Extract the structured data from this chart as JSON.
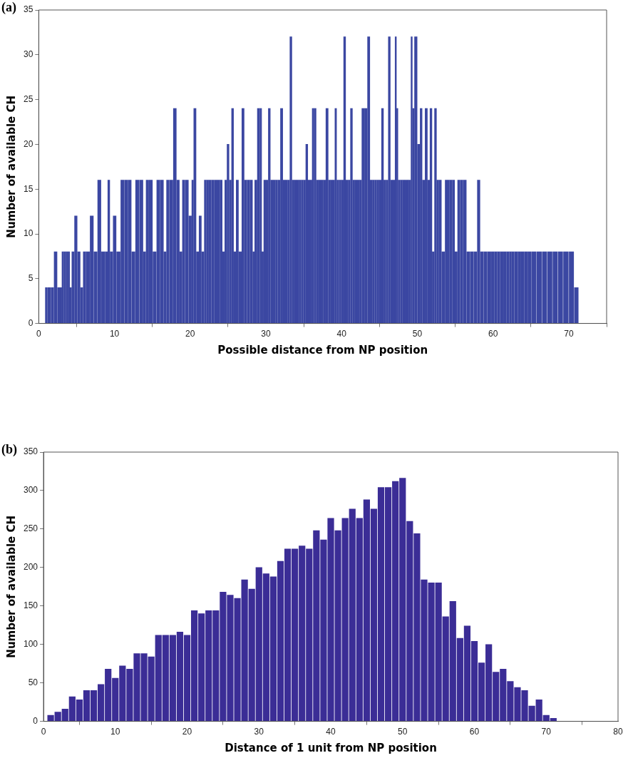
{
  "chart_data": [
    {
      "type": "bar",
      "title": "(a)",
      "xlabel": "Possible distance from NP position",
      "ylabel": "Number of available CH",
      "color": "#3b47a2",
      "x": [
        1.0,
        1.3,
        1.9,
        2.1,
        2.8,
        3.0,
        3.1,
        3.5,
        3.7,
        4.0,
        4.2,
        4.5,
        4.9,
        5.3,
        5.7,
        6.0,
        6.5,
        7.0,
        7.5,
        8.0,
        8.5,
        9.0,
        9.2,
        9.6,
        10.0,
        10.5,
        11.1,
        11.5,
        12.0,
        12.5,
        13.0,
        13.6,
        14.0,
        14.3,
        14.8,
        15.3,
        15.8,
        16.3,
        16.7,
        17.0,
        17.5,
        18.0,
        18.4,
        18.8,
        19.1,
        19.5,
        20.1,
        20.3,
        20.6,
        21.0,
        21.3,
        21.7,
        22.0,
        22.3,
        22.6,
        23.0,
        23.4,
        23.8,
        24.1,
        24.4,
        24.7,
        25.0,
        25.3,
        25.6,
        25.9,
        26.2,
        26.6,
        27.0,
        27.3,
        27.7,
        28.1,
        28.4,
        28.6,
        29.1,
        29.3,
        29.6,
        29.8,
        30.2,
        30.4,
        30.8,
        31.1,
        31.4,
        31.7,
        32.1,
        32.4,
        32.7,
        33.0,
        33.3,
        33.6,
        33.9,
        34.2,
        34.5,
        34.8,
        35.1,
        35.4,
        35.7,
        36.0,
        36.2,
        36.5,
        36.8,
        37.1,
        37.4,
        37.7,
        38.1,
        38.4,
        38.7,
        39.0,
        39.2,
        39.5,
        39.8,
        40.1,
        40.4,
        40.7,
        41.0,
        41.3,
        41.6,
        41.9,
        42.2,
        42.5,
        42.8,
        43.2,
        43.6,
        43.9,
        44.2,
        44.5,
        44.8,
        45.1,
        45.4,
        45.7,
        46.0,
        46.3,
        46.6,
        46.9,
        47.2,
        47.3,
        47.6,
        47.9,
        48.2,
        48.5,
        48.8,
        49.0,
        49.3,
        49.4,
        49.8,
        50.2,
        50.5,
        50.8,
        51.2,
        51.5,
        51.8,
        52.1,
        52.4,
        52.7,
        53.0,
        53.4,
        53.9,
        54.1,
        54.4,
        54.8,
        55.1,
        55.5,
        55.8,
        56.3,
        56.7,
        57.2,
        57.7,
        58.1,
        58.5,
        59.0,
        59.5,
        60.0,
        60.4,
        60.7,
        61.1,
        61.6,
        62.0,
        62.3,
        62.6,
        63.0,
        63.5,
        63.9,
        64.3,
        64.8,
        65.4,
        66.1,
        66.8,
        67.5,
        68.2,
        68.9,
        69.6,
        70.4,
        71.0
      ],
      "values": [
        4,
        4,
        4,
        8,
        4,
        4,
        8,
        8,
        8,
        8,
        4,
        8,
        12,
        8,
        4,
        8,
        8,
        12,
        8,
        16,
        8,
        8,
        16,
        8,
        12,
        8,
        16,
        16,
        16,
        8,
        16,
        16,
        8,
        16,
        16,
        8,
        16,
        16,
        8,
        16,
        16,
        24,
        16,
        8,
        16,
        16,
        12,
        16,
        24,
        8,
        12,
        8,
        16,
        16,
        16,
        16,
        16,
        16,
        16,
        8,
        16,
        20,
        16,
        24,
        8,
        16,
        8,
        24,
        16,
        16,
        16,
        8,
        16,
        24,
        24,
        8,
        16,
        16,
        24,
        16,
        16,
        16,
        16,
        24,
        16,
        16,
        16,
        32,
        16,
        16,
        16,
        16,
        16,
        16,
        20,
        16,
        16,
        24,
        24,
        16,
        16,
        16,
        16,
        24,
        16,
        16,
        16,
        24,
        16,
        16,
        16,
        32,
        16,
        16,
        24,
        16,
        16,
        16,
        16,
        24,
        24,
        32,
        16,
        16,
        16,
        16,
        16,
        24,
        16,
        16,
        32,
        16,
        16,
        32,
        24,
        16,
        16,
        16,
        16,
        16,
        16,
        32,
        24,
        32,
        20,
        24,
        16,
        24,
        16,
        24,
        8,
        24,
        16,
        16,
        8,
        16,
        16,
        16,
        16,
        8,
        16,
        16,
        16,
        8,
        8,
        8,
        16,
        8,
        8,
        8,
        8,
        8,
        8,
        8,
        8,
        8,
        8,
        8,
        8,
        8,
        8,
        8,
        8,
        8,
        8,
        8,
        8,
        8,
        8,
        8,
        8,
        4
      ],
      "xlim": [
        0,
        75
      ],
      "xticks": [
        0,
        10,
        20,
        30,
        40,
        50,
        60,
        70
      ],
      "ylim": [
        0,
        35
      ],
      "yticks": [
        0,
        5,
        10,
        15,
        20,
        25,
        30,
        35
      ]
    },
    {
      "type": "bar",
      "title": "(b)",
      "xlabel": "Distance of 1 unit from NP position",
      "ylabel": "Number of available CH",
      "color": "#3b2d96",
      "x": [
        1,
        2,
        3,
        4,
        5,
        6,
        7,
        8,
        9,
        10,
        11,
        12,
        13,
        14,
        15,
        16,
        17,
        18,
        19,
        20,
        21,
        22,
        23,
        24,
        25,
        26,
        27,
        28,
        29,
        30,
        31,
        32,
        33,
        34,
        35,
        36,
        37,
        38,
        39,
        40,
        41,
        42,
        43,
        44,
        45,
        46,
        47,
        48,
        49,
        50,
        51,
        52,
        53,
        54,
        55,
        56,
        57,
        58,
        59,
        60,
        61,
        62,
        63,
        64,
        65,
        66,
        67,
        68,
        69,
        70,
        71
      ],
      "values": [
        8,
        12,
        16,
        32,
        28,
        40,
        40,
        48,
        68,
        56,
        72,
        68,
        88,
        88,
        84,
        112,
        112,
        112,
        116,
        112,
        144,
        140,
        144,
        144,
        168,
        164,
        160,
        184,
        172,
        200,
        192,
        188,
        208,
        224,
        224,
        228,
        224,
        248,
        236,
        264,
        248,
        264,
        276,
        264,
        288,
        276,
        304,
        304,
        312,
        316,
        260,
        244,
        184,
        180,
        180,
        136,
        156,
        108,
        124,
        104,
        76,
        100,
        64,
        68,
        52,
        44,
        40,
        20,
        28,
        8,
        4
      ],
      "xlim": [
        0,
        80
      ],
      "xticks": [
        0,
        10,
        20,
        30,
        40,
        50,
        60,
        70,
        80
      ],
      "ylim": [
        0,
        350
      ],
      "yticks": [
        0,
        50,
        100,
        150,
        200,
        250,
        300,
        350
      ]
    }
  ]
}
